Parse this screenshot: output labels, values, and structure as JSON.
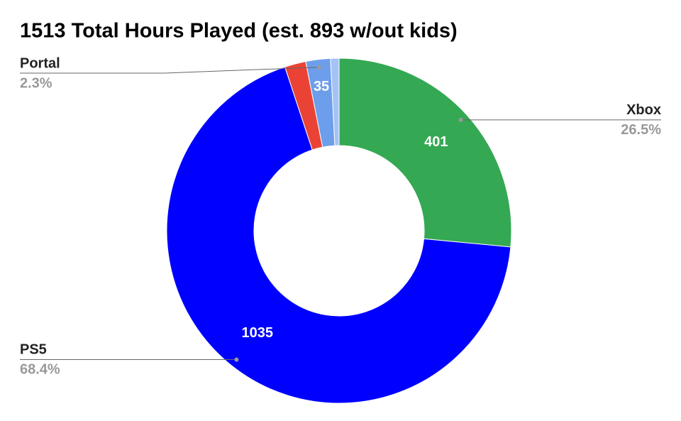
{
  "chart_data": {
    "type": "donut",
    "title": "1513 Total Hours Played (est. 893 w/out kids)",
    "categories": [
      "Xbox",
      "PS5",
      null,
      "Portal",
      null
    ],
    "values": [
      401,
      1035,
      30,
      35,
      12
    ],
    "value_labels": [
      "401",
      "1035",
      null,
      "35",
      null
    ],
    "percent_labels": [
      "26.5%",
      "68.4%",
      null,
      "2.3%",
      null
    ],
    "colors": [
      "#34a853",
      "#0000ff",
      "#ea4335",
      "#6d9eeb",
      "#a4c2f4"
    ]
  }
}
